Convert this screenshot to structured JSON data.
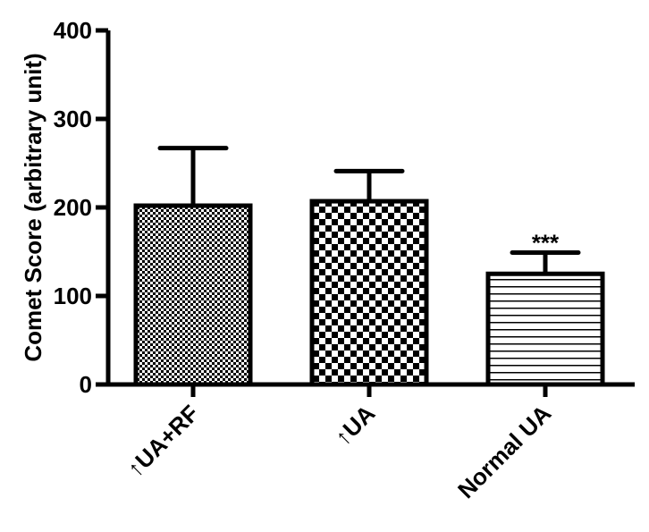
{
  "chart_data": {
    "type": "bar",
    "title": "",
    "xlabel": "",
    "ylabel": "Comet Score (arbitrary unit)",
    "ylim": [
      0,
      400
    ],
    "yticks": [
      0,
      100,
      200,
      300,
      400
    ],
    "ytick_labels": [
      "0",
      "100",
      "200",
      "300",
      "400"
    ],
    "categories": [
      "↑UA+RF",
      "↑UA",
      "Normal UA"
    ],
    "values": [
      202,
      207,
      125
    ],
    "error_upper": [
      267,
      241,
      149
    ],
    "fills": [
      "fine-checker",
      "coarse-checker",
      "horizontal-lines"
    ],
    "annotations": [
      {
        "category": "Normal UA",
        "text": "***"
      }
    ],
    "grid": false,
    "legend": "none"
  }
}
